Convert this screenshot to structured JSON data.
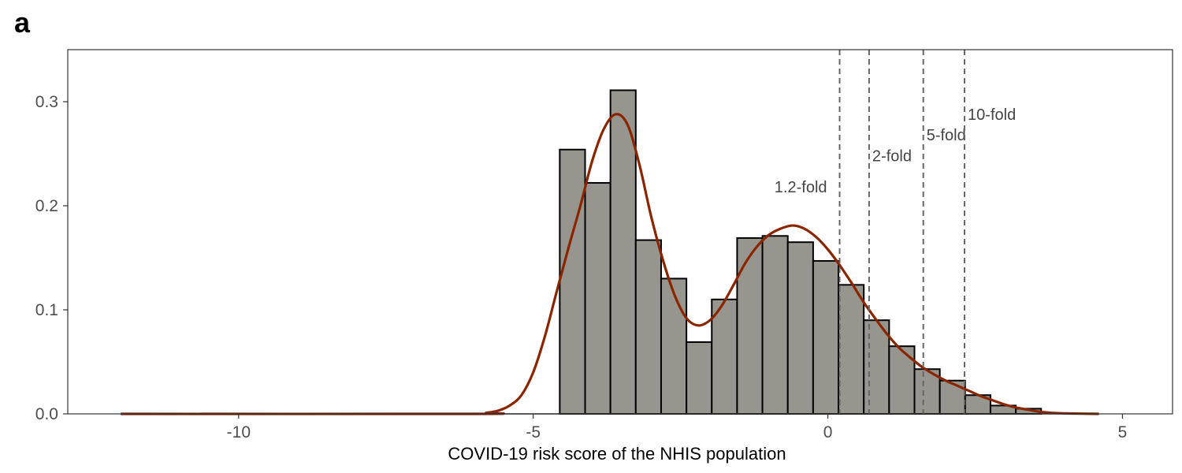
{
  "panel_label": "a",
  "chart_data": {
    "type": "bar",
    "xlabel": "COVID-19 risk score of the NHIS population",
    "ylabel": "",
    "xlim": [
      -12.9,
      5.85
    ],
    "ylim": [
      0,
      0.35
    ],
    "x_ticks": [
      -10,
      -5,
      0,
      5
    ],
    "x_tick_labels": [
      "-10",
      "-5",
      "0",
      "5"
    ],
    "y_ticks": [
      0.0,
      0.1,
      0.2,
      0.3
    ],
    "y_tick_labels": [
      "0.0",
      "0.1",
      "0.2",
      "0.3"
    ],
    "grid": false,
    "histogram": {
      "bin_edges": [
        -4.55,
        -4.12,
        -3.69,
        -3.26,
        -2.83,
        -2.4,
        -1.97,
        -1.54,
        -1.11,
        -0.68,
        -0.25,
        0.18,
        0.61,
        1.04,
        1.47,
        1.9,
        2.33,
        2.76,
        3.19,
        3.62
      ],
      "values": [
        0.254,
        0.222,
        0.311,
        0.167,
        0.13,
        0.069,
        0.11,
        0.169,
        0.171,
        0.165,
        0.147,
        0.124,
        0.09,
        0.065,
        0.043,
        0.032,
        0.018,
        0.008,
        0.005
      ],
      "fill": "#96958e",
      "stroke": "#000000"
    },
    "density": {
      "color": "#8b2500",
      "points": [
        [
          -12.0,
          0.0
        ],
        [
          -6.0,
          0.0
        ],
        [
          -5.8,
          0.001
        ],
        [
          -5.6,
          0.003
        ],
        [
          -5.4,
          0.008
        ],
        [
          -5.2,
          0.018
        ],
        [
          -5.0,
          0.04
        ],
        [
          -4.8,
          0.075
        ],
        [
          -4.6,
          0.118
        ],
        [
          -4.4,
          0.16
        ],
        [
          -4.2,
          0.2
        ],
        [
          -4.0,
          0.243
        ],
        [
          -3.8,
          0.274
        ],
        [
          -3.6,
          0.288
        ],
        [
          -3.4,
          0.278
        ],
        [
          -3.2,
          0.24
        ],
        [
          -3.0,
          0.19
        ],
        [
          -2.8,
          0.148
        ],
        [
          -2.6,
          0.114
        ],
        [
          -2.4,
          0.092
        ],
        [
          -2.2,
          0.085
        ],
        [
          -2.0,
          0.09
        ],
        [
          -1.8,
          0.104
        ],
        [
          -1.6,
          0.124
        ],
        [
          -1.4,
          0.145
        ],
        [
          -1.2,
          0.161
        ],
        [
          -1.0,
          0.172
        ],
        [
          -0.8,
          0.178
        ],
        [
          -0.6,
          0.181
        ],
        [
          -0.4,
          0.178
        ],
        [
          -0.2,
          0.17
        ],
        [
          0.0,
          0.158
        ],
        [
          0.2,
          0.143
        ],
        [
          0.4,
          0.126
        ],
        [
          0.6,
          0.108
        ],
        [
          0.8,
          0.092
        ],
        [
          1.0,
          0.077
        ],
        [
          1.2,
          0.064
        ],
        [
          1.4,
          0.054
        ],
        [
          1.6,
          0.045
        ],
        [
          1.8,
          0.038
        ],
        [
          2.0,
          0.032
        ],
        [
          2.2,
          0.027
        ],
        [
          2.4,
          0.022
        ],
        [
          2.6,
          0.017
        ],
        [
          2.8,
          0.013
        ],
        [
          3.0,
          0.009
        ],
        [
          3.2,
          0.006
        ],
        [
          3.4,
          0.004
        ],
        [
          3.6,
          0.002
        ],
        [
          3.8,
          0.001
        ],
        [
          4.0,
          0.0005
        ],
        [
          4.6,
          0.0
        ]
      ]
    },
    "thresholds": [
      {
        "label": "1.2-fold",
        "x": 0.2,
        "label_y": 0.218,
        "label_side": "left"
      },
      {
        "label": "2-fold",
        "x": 0.7,
        "label_y": 0.248,
        "label_side": "right"
      },
      {
        "label": "5-fold",
        "x": 1.62,
        "label_y": 0.268,
        "label_side": "right"
      },
      {
        "label": "10-fold",
        "x": 2.32,
        "label_y": 0.288,
        "label_side": "right"
      }
    ],
    "threshold_color": "#666666"
  }
}
